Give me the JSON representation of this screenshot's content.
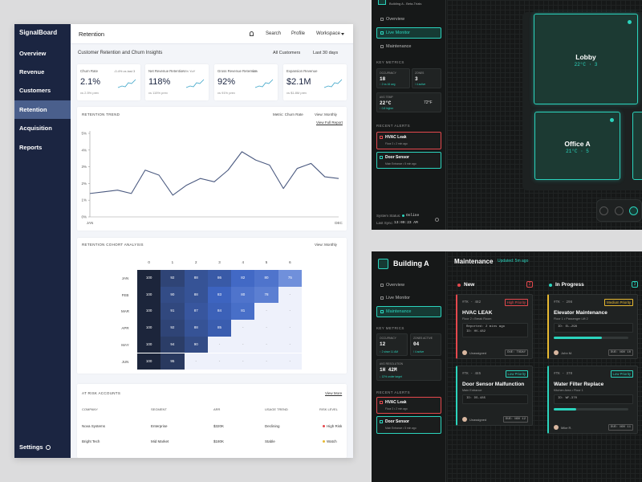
{
  "app": {
    "brand": "SignalBoard",
    "nav": [
      "Overview",
      "Revenue",
      "Customers",
      "Retention",
      "Acquisition",
      "Reports"
    ],
    "active_nav": 3,
    "settings": "Settings",
    "page_title": "Retention",
    "top_links": [
      "Search",
      "Profile",
      "Workspace"
    ],
    "subtitle": "Customer Retention and Churn Insights",
    "filters": [
      "All Customers",
      "Last 30 days"
    ],
    "kpis": [
      {
        "label": "Churn Rate",
        "delta": "-0.4% vs last 3",
        "value": "2.1%",
        "prev": "vs 2.5% prev"
      },
      {
        "label": "Net Revenue Retention",
        "delta": "+3% YoY",
        "value": "118%",
        "prev": "vs 115% prev"
      },
      {
        "label": "Gross Revenue Retention",
        "delta": "+1%",
        "value": "92%",
        "prev": "vs 91% prev"
      },
      {
        "label": "Expansion Revenue",
        "delta": "",
        "value": "$2.1M",
        "prev": "vs $1.8M prev"
      }
    ]
  },
  "chart_data": {
    "type": "line",
    "title": "RETENTION TREND",
    "controls": [
      "Metric: Churn Rate",
      "View: Monthly"
    ],
    "link": "View Full Report",
    "categories": [
      "JAN",
      null,
      null,
      null,
      null,
      null,
      null,
      null,
      null,
      null,
      null,
      null,
      null,
      null,
      null,
      null,
      null,
      null,
      "DEC"
    ],
    "values": [
      1.4,
      1.5,
      1.6,
      1.4,
      2.8,
      2.5,
      1.3,
      1.9,
      2.3,
      2.1,
      2.8,
      3.9,
      3.4,
      3.1,
      1.7,
      2.9,
      3.2,
      2.4,
      2.3
    ],
    "color": "#4b5a80",
    "ylim": [
      0,
      5
    ],
    "yticks": [
      {
        "value": 0,
        "label": "0%"
      },
      {
        "value": 1,
        "label": "1%"
      },
      {
        "value": 2,
        "label": "2%"
      },
      {
        "value": 3,
        "label": "3%"
      },
      {
        "value": 4,
        "label": "4%"
      },
      {
        "value": 5,
        "label": "5%"
      }
    ]
  },
  "cohort": {
    "title": "RETENTION COHORT ANALYSIS",
    "control": "View: Monthly",
    "columns": [
      0,
      1,
      2,
      3,
      4,
      5,
      6
    ],
    "rows": [
      {
        "label": "JAN",
        "cells": [
          100,
          92,
          88,
          86,
          82,
          80,
          75
        ]
      },
      {
        "label": "FEB",
        "cells": [
          100,
          90,
          88,
          83,
          80,
          78,
          "-"
        ]
      },
      {
        "label": "MAR",
        "cells": [
          100,
          91,
          87,
          84,
          81,
          "-",
          "-"
        ]
      },
      {
        "label": "APR",
        "cells": [
          100,
          92,
          88,
          85,
          "-",
          "-",
          "-"
        ]
      },
      {
        "label": "MAY",
        "cells": [
          100,
          94,
          90,
          "-",
          "-",
          "-",
          "-"
        ]
      },
      {
        "label": "JUN",
        "cells": [
          100,
          95,
          "-",
          "-",
          "-",
          "-",
          "-"
        ]
      }
    ]
  },
  "at_risk": {
    "title": "AT RISK ACCOUNTS",
    "link": "View More",
    "headers": [
      "COMPANY",
      "SEGMENT",
      "ARR",
      "USAGE TREND",
      "RISK LEVEL"
    ],
    "rows": [
      {
        "company": "Nova Systems",
        "segment": "Enterprise",
        "arr": "$320K",
        "trend": "Declining",
        "risk": "High Risk",
        "risk_color": "#e5484d"
      },
      {
        "company": "Bright Tech",
        "segment": "Mid Market",
        "arr": "$180K",
        "trend": "Stable",
        "risk": "Watch",
        "risk_color": "#e8b931"
      }
    ]
  },
  "monitor": {
    "site": "Building A - Beta-Trials",
    "nav": [
      "Overview",
      "Live Monitor",
      "Maintenance"
    ],
    "active_nav": 1,
    "metrics_title": "KEY METRICS",
    "metrics": [
      {
        "label": "OCCUPANCY",
        "value": "18",
        "note": "↑ 2 vs 16 avg"
      },
      {
        "label": "ZONES",
        "value": "3",
        "note": "/ 4 active"
      },
      {
        "label": "AVG TEMP",
        "value": "22°C",
        "note": "↑ 0.8 higher",
        "alt": "72°F"
      }
    ],
    "alerts_title": "RECENT ALERTS",
    "alerts": [
      {
        "title": "HVAC Leak",
        "detail": "Floor 2 • 2 min ago",
        "color": "#e5484d"
      },
      {
        "title": "Door Sensor",
        "detail": "Main Entrance • 5 min ago",
        "color": "#2bd4bd"
      }
    ],
    "status_label": "System Status:",
    "status": "Online",
    "sync_label": "Last Sync:",
    "sync": "13:09:23 AM",
    "rooms": [
      {
        "name": "Lobby",
        "reading": "22°C · 3"
      },
      {
        "name": "Office A",
        "reading": "21°C · 5"
      }
    ]
  },
  "maintenance": {
    "site": "Building A",
    "nav": [
      "Overview",
      "Live Monitor",
      "Maintenance"
    ],
    "active_nav": 2,
    "metrics_title": "KEY METRICS",
    "metrics": [
      {
        "label": "OCCUPANCY",
        "value": "12",
        "note": "↑ 2 since 11 AM"
      },
      {
        "label": "ZONES ACTIVE",
        "value": "04",
        "note": "/ 4 active"
      },
      {
        "label": "AVG RESOLUTION",
        "value": "1H 42M",
        "note": "↓ 12% under target"
      }
    ],
    "alerts_title": "RECENT ALERTS",
    "alerts": [
      {
        "title": "HVAC Leak",
        "detail": "Floor 2 • 2 min ago",
        "color": "#e5484d"
      },
      {
        "title": "Door Sensor",
        "detail": "Main Entrance • 5 min ago",
        "color": "#2bd4bd"
      }
    ],
    "title": "Maintenance",
    "updated": "Updated: 5m ago",
    "columns": [
      {
        "name": "New",
        "count": 2,
        "color": "#e5484d",
        "cards": [
          {
            "id": "#TK - 482",
            "priority": "High Priority",
            "accent": "#e5484d",
            "title": "HVAC LEAK",
            "location": "Floor 2 • Break Room",
            "meta": [
              "Reported: 2 mins ago",
              "ID: HV-482"
            ],
            "assignee": "Unassigned",
            "due": "DUE: TODAY"
          },
          {
            "id": "#TK - 485",
            "priority": "Low Priority",
            "accent": "#2bd4bd",
            "title": "Door Sensor Malfunction",
            "location": "Main Entrance",
            "meta": [
              "ID: DS-485"
            ],
            "assignee": "Unassigned",
            "due": "DUE: NOV 12"
          }
        ]
      },
      {
        "name": "In Progress",
        "count": 3,
        "color": "#2bd4bd",
        "cards": [
          {
            "id": "#TK - 298",
            "priority": "Medium Priority",
            "accent": "#e8b931",
            "title": "Elevator Maintenance",
            "location": "Floor 1 • Passenger Lift 2",
            "meta": [
              "ID: EL-298"
            ],
            "progress": 65,
            "assignee": "John M.",
            "due": "DUE: NOV 10"
          },
          {
            "id": "#TK - 370",
            "priority": "Low Priority",
            "accent": "#2bd4bd",
            "title": "Water Filter Replace",
            "location": "Kitchen Area • Floor 1",
            "meta": [
              "ID: WF-370"
            ],
            "progress": 30,
            "assignee": "Mike R.",
            "due": "DUE: NOV 11"
          }
        ]
      }
    ]
  }
}
